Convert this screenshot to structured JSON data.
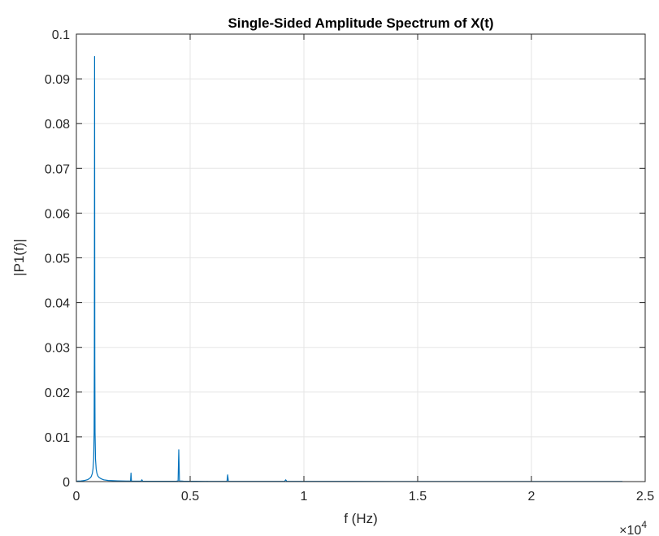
{
  "chart_data": {
    "type": "line",
    "title": "Single-Sided Amplitude Spectrum of X(t)",
    "xlabel": "f (Hz)",
    "ylabel": "|P1(f)|",
    "xlim": [
      0,
      25000
    ],
    "ylim": [
      0,
      0.1
    ],
    "x_ticks": [
      0,
      0.5,
      1,
      1.5,
      2,
      2.5
    ],
    "x_tick_labels": [
      "0",
      "0.5",
      "1",
      "1.5",
      "2",
      "2.5"
    ],
    "x_multiplier": "×10",
    "x_multiplier_exponent": "4",
    "y_ticks": [
      0,
      0.01,
      0.02,
      0.03,
      0.04,
      0.05,
      0.06,
      0.07,
      0.08,
      0.09,
      0.1
    ],
    "y_tick_labels": [
      "0",
      "0.01",
      "0.02",
      "0.03",
      "0.04",
      "0.05",
      "0.06",
      "0.07",
      "0.08",
      "0.09",
      "0.1"
    ],
    "grid": true,
    "color": "#0072BD",
    "series": [
      {
        "x": [
          0,
          100,
          200,
          300,
          400,
          500,
          550,
          600,
          650,
          700,
          730,
          760,
          780,
          790,
          800,
          810,
          820,
          840,
          870,
          900,
          950,
          1000,
          1100,
          1200,
          1400,
          1600,
          1800,
          2000,
          2200,
          2380,
          2400,
          2420,
          2600,
          2850,
          2880,
          2910,
          3200,
          3600,
          4000,
          4400,
          4470,
          4500,
          4530,
          4700,
          5200,
          5800,
          6400,
          6620,
          6650,
          6680,
          7000,
          7700,
          8300,
          9150,
          9200,
          9250,
          10000,
          12000,
          14000,
          16000,
          18000,
          20000,
          22000,
          24000
        ],
        "y": [
          0.0001,
          0.00012,
          0.00015,
          0.0002,
          0.0003,
          0.00045,
          0.0006,
          0.0008,
          0.0011,
          0.0018,
          0.0028,
          0.005,
          0.011,
          0.028,
          0.095,
          0.026,
          0.011,
          0.005,
          0.0028,
          0.0019,
          0.0012,
          0.0009,
          0.0006,
          0.0004,
          0.00025,
          0.0002,
          0.00016,
          0.00014,
          0.00012,
          0.00012,
          0.0019,
          0.00012,
          0.0001,
          0.0001,
          0.0004,
          0.0001,
          8e-05,
          8e-05,
          8e-05,
          0.0001,
          0.00015,
          0.0071,
          0.00015,
          0.0001,
          7e-05,
          6e-05,
          6e-05,
          8e-05,
          0.0015,
          8e-05,
          6e-05,
          5e-05,
          5e-05,
          5e-05,
          0.0004,
          5e-05,
          4e-05,
          4e-05,
          3e-05,
          3e-05,
          3e-05,
          3e-05,
          3e-05,
          2e-05
        ]
      }
    ]
  }
}
